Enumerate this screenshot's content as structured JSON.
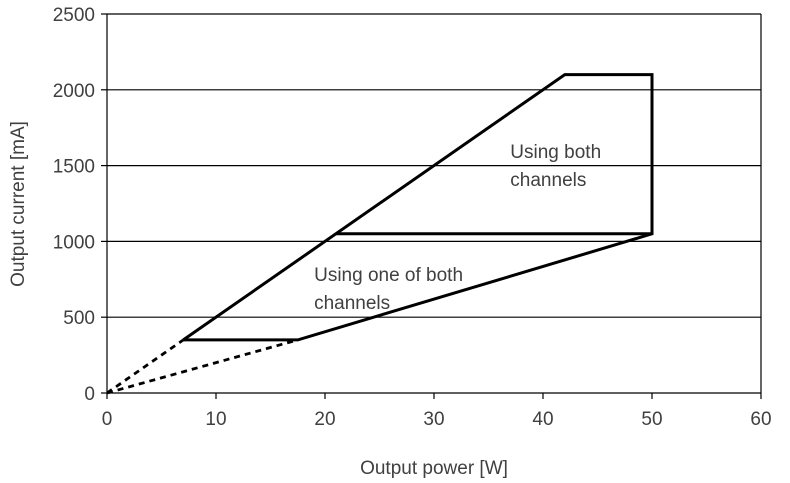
{
  "chart_data": {
    "type": "line",
    "xlabel": "Output power [W]",
    "ylabel": "Output current [mA]",
    "xlim": [
      0,
      60
    ],
    "ylim": [
      0,
      2500
    ],
    "x_ticks": [
      0,
      10,
      20,
      30,
      40,
      50,
      60
    ],
    "x_tick_labels": [
      "0",
      "10",
      "20",
      "30",
      "40",
      "50",
      "60"
    ],
    "y_ticks": [
      0,
      500,
      1000,
      1500,
      2000,
      2500
    ],
    "y_tick_labels": [
      "0",
      "500",
      "1000",
      "1500",
      "2000",
      "2500"
    ],
    "grid": "horizontal",
    "series": [
      {
        "style": "solid",
        "points": [
          {
            "x": 7,
            "y": 350
          },
          {
            "x": 42,
            "y": 2100
          },
          {
            "x": 50,
            "y": 2100
          },
          {
            "x": 50,
            "y": 1050
          },
          {
            "x": 17.5,
            "y": 350
          },
          {
            "x": 7,
            "y": 350
          }
        ]
      },
      {
        "style": "solid",
        "points": [
          {
            "x": 21,
            "y": 1050
          },
          {
            "x": 50,
            "y": 1050
          }
        ]
      },
      {
        "style": "dashed",
        "points": [
          {
            "x": 0,
            "y": 0
          },
          {
            "x": 7,
            "y": 350
          }
        ]
      },
      {
        "style": "dashed",
        "points": [
          {
            "x": 0,
            "y": 0
          },
          {
            "x": 17.5,
            "y": 350
          }
        ]
      }
    ],
    "annotations": [
      {
        "lines": [
          "Using both",
          "channels"
        ],
        "x": 37,
        "y": 1550
      },
      {
        "lines": [
          "Using one of both",
          "channels"
        ],
        "x": 19,
        "y": 740
      }
    ]
  }
}
